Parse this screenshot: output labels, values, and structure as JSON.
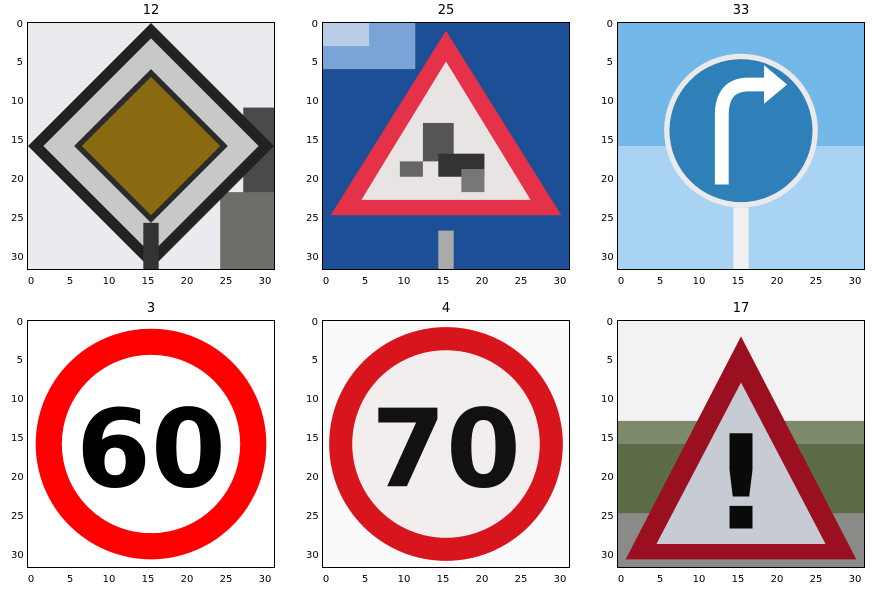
{
  "figure": {
    "panels": [
      {
        "title": "12",
        "subject": "priority-road-sign"
      },
      {
        "title": "25",
        "subject": "road-work-sign"
      },
      {
        "title": "33",
        "subject": "turn-right-ahead-sign"
      },
      {
        "title": "3",
        "subject": "speed-limit-60-sign",
        "sign_text": "60"
      },
      {
        "title": "4",
        "subject": "speed-limit-70-sign",
        "sign_text": "70"
      },
      {
        "title": "17",
        "subject": "general-caution-sign",
        "sign_text": "!"
      }
    ],
    "yticks": [
      "0",
      "5",
      "10",
      "15",
      "20",
      "25",
      "30"
    ],
    "xticks": [
      "0",
      "5",
      "10",
      "15",
      "20",
      "25",
      "30"
    ],
    "colors": {
      "red": "#ee1111",
      "dark_red": "#9a1020",
      "blue_sign": "#2f7fb8",
      "sky": "#74b8ea",
      "deep_blue": "#1d4f96",
      "olive": "#8a6a10"
    }
  }
}
